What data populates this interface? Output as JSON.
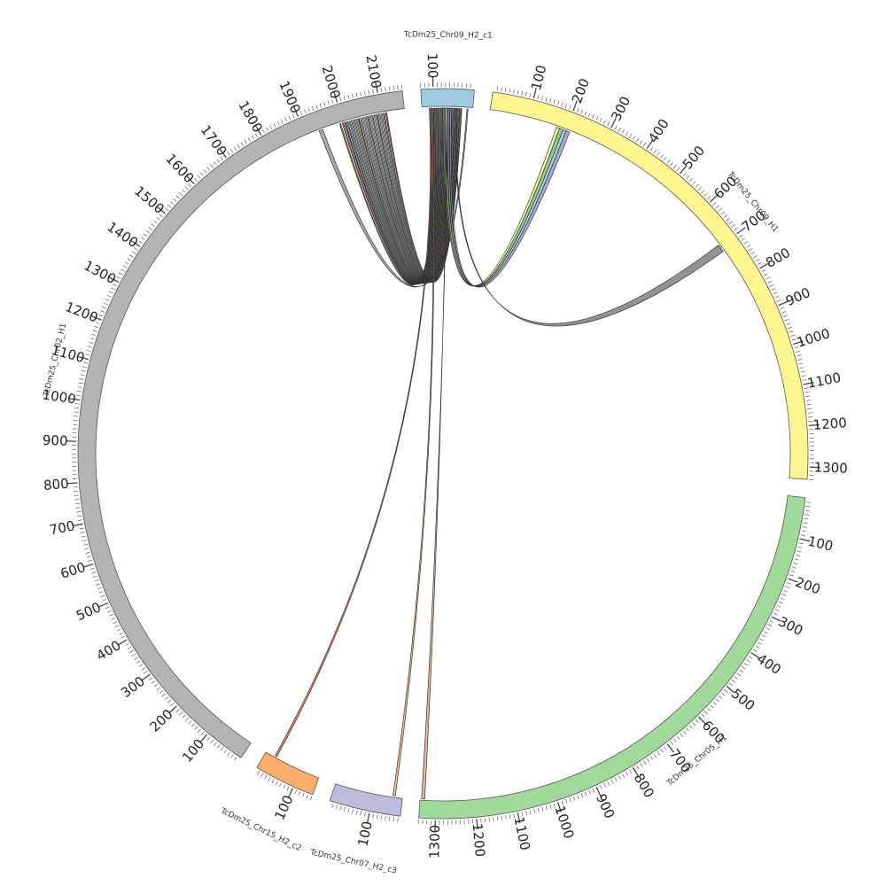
{
  "chart_data": {
    "type": "circos",
    "title": "",
    "unit_label_step": 100,
    "chromosomes": [
      {
        "id": "c1",
        "name": "TcDm25_Chr09_H2_c1",
        "length": 130,
        "color": "#9ecae1",
        "reversed": true
      },
      {
        "id": "chr09h1",
        "name": "TcDm25_Chr09_H1",
        "length": 1330,
        "color": "#fff68f",
        "reversed": false
      },
      {
        "id": "chr05h1",
        "name": "TcDm25_Chr05_H1",
        "length": 1340,
        "color": "#a1d99b",
        "reversed": false
      },
      {
        "id": "c3",
        "name": "TcDm25_Chr07_H2_c3",
        "length": 175,
        "color": "#bcbddc",
        "reversed": true
      },
      {
        "id": "c2",
        "name": "TcDm25_Chr15_H2_c2",
        "length": 150,
        "color": "#fdae6b",
        "reversed": true
      },
      {
        "id": "chr02h1",
        "name": "TcDm25_Chr02_H1",
        "length": 2160,
        "color": "#b3b3b3",
        "reversed": false
      }
    ],
    "links": [
      {
        "from": [
          "c1",
          12,
          15
        ],
        "to": [
          "chr02h1",
          1935,
          1945
        ],
        "color": "#999999"
      },
      {
        "from": [
          "c1",
          108,
          110
        ],
        "to": [
          "chr02h1",
          1990,
          1993
        ],
        "color": "#8c6d31"
      },
      {
        "from": [
          "c1",
          104,
          106
        ],
        "to": [
          "chr02h1",
          1997,
          2000
        ],
        "color": "#e6550d"
      },
      {
        "from": [
          "c1",
          100,
          102
        ],
        "to": [
          "chr02h1",
          2003,
          2006
        ],
        "color": "#222222"
      },
      {
        "from": [
          "c1",
          96,
          98
        ],
        "to": [
          "chr02h1",
          2009,
          2012
        ],
        "color": "#636363"
      },
      {
        "from": [
          "c1",
          92,
          94
        ],
        "to": [
          "chr02h1",
          2015,
          2018
        ],
        "color": "#9e9ac8"
      },
      {
        "from": [
          "c1",
          88,
          90
        ],
        "to": [
          "chr02h1",
          2021,
          2024
        ],
        "color": "#74c476"
      },
      {
        "from": [
          "c1",
          84,
          86
        ],
        "to": [
          "chr02h1",
          2027,
          2030
        ],
        "color": "#6baed6"
      },
      {
        "from": [
          "c1",
          80,
          82
        ],
        "to": [
          "chr02h1",
          2033,
          2036
        ],
        "color": "#fd8d3c"
      },
      {
        "from": [
          "c1",
          76,
          78
        ],
        "to": [
          "chr02h1",
          2039,
          2042
        ],
        "color": "#333333"
      },
      {
        "from": [
          "c1",
          72,
          74
        ],
        "to": [
          "chr02h1",
          2045,
          2048
        ],
        "color": "#969696"
      },
      {
        "from": [
          "c1",
          68,
          70
        ],
        "to": [
          "chr02h1",
          2051,
          2054
        ],
        "color": "#c6dbef"
      },
      {
        "from": [
          "c1",
          64,
          66
        ],
        "to": [
          "chr02h1",
          2057,
          2060
        ],
        "color": "#bdbdbd"
      },
      {
        "from": [
          "c1",
          60,
          62
        ],
        "to": [
          "chr02h1",
          2063,
          2066
        ],
        "color": "#555555"
      },
      {
        "from": [
          "c1",
          56,
          58
        ],
        "to": [
          "chr02h1",
          2069,
          2072
        ],
        "color": "#dadaeb"
      },
      {
        "from": [
          "c1",
          52,
          54
        ],
        "to": [
          "chr02h1",
          2075,
          2078
        ],
        "color": "#777777"
      },
      {
        "from": [
          "c1",
          48,
          50
        ],
        "to": [
          "chr02h1",
          2081,
          2084
        ],
        "color": "#d9d9d9"
      },
      {
        "from": [
          "c1",
          44,
          46
        ],
        "to": [
          "chr02h1",
          2087,
          2090
        ],
        "color": "#444444"
      },
      {
        "from": [
          "c1",
          40,
          42
        ],
        "to": [
          "chr02h1",
          2093,
          2096
        ],
        "color": "#a1d99b"
      },
      {
        "from": [
          "c1",
          36,
          38
        ],
        "to": [
          "chr02h1",
          2099,
          2102
        ],
        "color": "#e7969c"
      },
      {
        "from": [
          "c1",
          32,
          34
        ],
        "to": [
          "chr02h1",
          2105,
          2108
        ],
        "color": "#666666"
      },
      {
        "from": [
          "c1",
          28,
          30
        ],
        "to": [
          "chr02h1",
          2111,
          2114
        ],
        "color": "#7b4173"
      },
      {
        "from": [
          "c1",
          72,
          76
        ],
        "to": [
          "chr09h1",
          183,
          193
        ],
        "color": "#74c476"
      },
      {
        "from": [
          "c1",
          66,
          70
        ],
        "to": [
          "chr09h1",
          175,
          183
        ],
        "color": "#fff68f"
      },
      {
        "from": [
          "c1",
          60,
          64
        ],
        "to": [
          "chr09h1",
          193,
          201
        ],
        "color": "#9ecae1"
      },
      {
        "from": [
          "c1",
          54,
          58
        ],
        "to": [
          "chr09h1",
          201,
          211
        ],
        "color": "#9e9ac8"
      },
      {
        "from": [
          "c1",
          40,
          42
        ],
        "to": [
          "chr09h1",
          695,
          715
        ],
        "color": "#808080"
      },
      {
        "from": [
          "c1",
          108,
          111
        ],
        "to": [
          "c2",
          25,
          30
        ],
        "color": "#fb6a4a"
      },
      {
        "from": [
          "c1",
          104,
          107
        ],
        "to": [
          "c3",
          150,
          156
        ],
        "color": "#fdae6b"
      },
      {
        "from": [
          "c1",
          64,
          66
        ],
        "to": [
          "chr05h1",
          1328,
          1336
        ],
        "color": "#f4a582"
      }
    ]
  }
}
